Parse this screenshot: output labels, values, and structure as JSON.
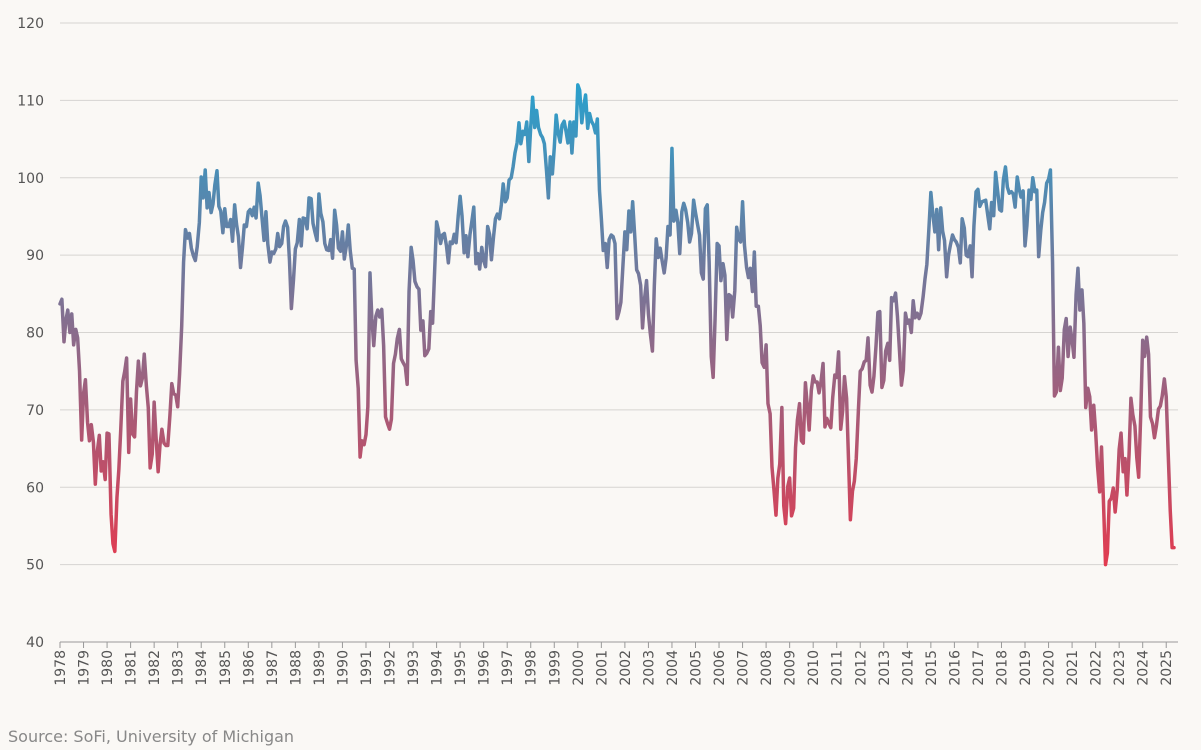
{
  "chart_data": {
    "type": "line",
    "source": "Source: SoFi, University of Michigan",
    "gradient_colors": [
      "#e23b50",
      "#2aa0cc"
    ],
    "grid": true,
    "xlim": [
      1978,
      2025.5
    ],
    "ylim": [
      40,
      120
    ],
    "yticks": [
      40,
      50,
      60,
      70,
      80,
      90,
      100,
      110,
      120
    ],
    "xticks": [
      1978,
      1979,
      1980,
      1981,
      1982,
      1983,
      1984,
      1985,
      1986,
      1987,
      1988,
      1989,
      1990,
      1991,
      1992,
      1993,
      1994,
      1995,
      1996,
      1997,
      1998,
      1999,
      2000,
      2001,
      2002,
      2003,
      2004,
      2005,
      2006,
      2007,
      2008,
      2009,
      2010,
      2011,
      2012,
      2013,
      2014,
      2015,
      2016,
      2017,
      2018,
      2019,
      2020,
      2021,
      2022,
      2023,
      2024,
      2025
    ],
    "x": [
      1978,
      1978.08,
      1978.17,
      1978.25,
      1978.33,
      1978.42,
      1978.5,
      1978.58,
      1978.67,
      1978.75,
      1978.83,
      1978.92,
      1979,
      1979.08,
      1979.17,
      1979.25,
      1979.33,
      1979.42,
      1979.5,
      1979.58,
      1979.67,
      1979.75,
      1979.83,
      1979.92,
      1980,
      1980.08,
      1980.17,
      1980.25,
      1980.33,
      1980.42,
      1980.5,
      1980.58,
      1980.67,
      1980.75,
      1980.83,
      1980.92,
      1981,
      1981.08,
      1981.17,
      1981.25,
      1981.33,
      1981.42,
      1981.5,
      1981.58,
      1981.67,
      1981.75,
      1981.83,
      1981.92,
      1982,
      1982.08,
      1982.17,
      1982.25,
      1982.33,
      1982.42,
      1982.5,
      1982.58,
      1982.67,
      1982.75,
      1982.83,
      1982.92,
      1983,
      1983.08,
      1983.17,
      1983.25,
      1983.33,
      1983.42,
      1983.5,
      1983.58,
      1983.67,
      1983.75,
      1983.83,
      1983.92,
      1984,
      1984.08,
      1984.17,
      1984.25,
      1984.33,
      1984.42,
      1984.5,
      1984.58,
      1984.67,
      1984.75,
      1984.83,
      1984.92,
      1985,
      1985.08,
      1985.17,
      1985.25,
      1985.33,
      1985.42,
      1985.5,
      1985.58,
      1985.67,
      1985.75,
      1985.83,
      1985.92,
      1986,
      1986.08,
      1986.17,
      1986.25,
      1986.33,
      1986.42,
      1986.5,
      1986.58,
      1986.67,
      1986.75,
      1986.83,
      1986.92,
      1987,
      1987.08,
      1987.17,
      1987.25,
      1987.33,
      1987.42,
      1987.5,
      1987.58,
      1987.67,
      1987.75,
      1987.83,
      1987.92,
      1988,
      1988.08,
      1988.17,
      1988.25,
      1988.33,
      1988.42,
      1988.5,
      1988.58,
      1988.67,
      1988.75,
      1988.83,
      1988.92,
      1989,
      1989.08,
      1989.17,
      1989.25,
      1989.33,
      1989.42,
      1989.5,
      1989.58,
      1989.67,
      1989.75,
      1989.83,
      1989.92,
      1990,
      1990.08,
      1990.17,
      1990.25,
      1990.33,
      1990.42,
      1990.5,
      1990.58,
      1990.67,
      1990.75,
      1990.83,
      1990.92,
      1991,
      1991.08,
      1991.17,
      1991.25,
      1991.33,
      1991.42,
      1991.5,
      1991.58,
      1991.67,
      1991.75,
      1991.83,
      1991.92,
      1992,
      1992.08,
      1992.17,
      1992.25,
      1992.33,
      1992.42,
      1992.5,
      1992.58,
      1992.67,
      1992.75,
      1992.83,
      1992.92,
      1993,
      1993.08,
      1993.17,
      1993.25,
      1993.33,
      1993.42,
      1993.5,
      1993.58,
      1993.67,
      1993.75,
      1993.83,
      1993.92,
      1994,
      1994.08,
      1994.17,
      1994.25,
      1994.33,
      1994.42,
      1994.5,
      1994.58,
      1994.67,
      1994.75,
      1994.83,
      1994.92,
      1995,
      1995.08,
      1995.17,
      1995.25,
      1995.33,
      1995.42,
      1995.5,
      1995.58,
      1995.67,
      1995.75,
      1995.83,
      1995.92,
      1996,
      1996.08,
      1996.17,
      1996.25,
      1996.33,
      1996.42,
      1996.5,
      1996.58,
      1996.67,
      1996.75,
      1996.83,
      1996.92,
      1997,
      1997.08,
      1997.17,
      1997.25,
      1997.33,
      1997.42,
      1997.5,
      1997.58,
      1997.67,
      1997.75,
      1997.83,
      1997.92,
      1998,
      1998.08,
      1998.17,
      1998.25,
      1998.33,
      1998.42,
      1998.5,
      1998.58,
      1998.67,
      1998.75,
      1998.83,
      1998.92,
      1999,
      1999.08,
      1999.17,
      1999.25,
      1999.33,
      1999.42,
      1999.5,
      1999.58,
      1999.67,
      1999.75,
      1999.83,
      1999.92,
      2000,
      2000.08,
      2000.17,
      2000.25,
      2000.33,
      2000.42,
      2000.5,
      2000.58,
      2000.67,
      2000.75,
      2000.83,
      2000.92,
      2001,
      2001.08,
      2001.17,
      2001.25,
      2001.33,
      2001.42,
      2001.5,
      2001.58,
      2001.67,
      2001.75,
      2001.83,
      2001.92,
      2002,
      2002.08,
      2002.17,
      2002.25,
      2002.33,
      2002.42,
      2002.5,
      2002.58,
      2002.67,
      2002.75,
      2002.83,
      2002.92,
      2003,
      2003.08,
      2003.17,
      2003.25,
      2003.33,
      2003.42,
      2003.5,
      2003.58,
      2003.67,
      2003.75,
      2003.83,
      2003.92,
      2004,
      2004.08,
      2004.17,
      2004.25,
      2004.33,
      2004.42,
      2004.5,
      2004.58,
      2004.67,
      2004.75,
      2004.83,
      2004.92,
      2005,
      2005.08,
      2005.17,
      2005.25,
      2005.33,
      2005.42,
      2005.5,
      2005.58,
      2005.67,
      2005.75,
      2005.83,
      2005.92,
      2006,
      2006.08,
      2006.17,
      2006.25,
      2006.33,
      2006.42,
      2006.5,
      2006.58,
      2006.67,
      2006.75,
      2006.83,
      2006.92,
      2007,
      2007.08,
      2007.17,
      2007.25,
      2007.33,
      2007.42,
      2007.5,
      2007.58,
      2007.67,
      2007.75,
      2007.83,
      2007.92,
      2008,
      2008.08,
      2008.17,
      2008.25,
      2008.33,
      2008.42,
      2008.5,
      2008.58,
      2008.67,
      2008.75,
      2008.83,
      2008.92,
      2009,
      2009.08,
      2009.17,
      2009.25,
      2009.33,
      2009.42,
      2009.5,
      2009.58,
      2009.67,
      2009.75,
      2009.83,
      2009.92,
      2010,
      2010.08,
      2010.17,
      2010.25,
      2010.33,
      2010.42,
      2010.5,
      2010.58,
      2010.67,
      2010.75,
      2010.83,
      2010.92,
      2011,
      2011.08,
      2011.17,
      2011.25,
      2011.33,
      2011.42,
      2011.5,
      2011.58,
      2011.67,
      2011.75,
      2011.83,
      2011.92,
      2012,
      2012.08,
      2012.17,
      2012.25,
      2012.33,
      2012.42,
      2012.5,
      2012.58,
      2012.67,
      2012.75,
      2012.83,
      2012.92,
      2013,
      2013.08,
      2013.17,
      2013.25,
      2013.33,
      2013.42,
      2013.5,
      2013.58,
      2013.67,
      2013.75,
      2013.83,
      2013.92,
      2014,
      2014.08,
      2014.17,
      2014.25,
      2014.33,
      2014.42,
      2014.5,
      2014.58,
      2014.67,
      2014.75,
      2014.83,
      2014.92,
      2015,
      2015.08,
      2015.17,
      2015.25,
      2015.33,
      2015.42,
      2015.5,
      2015.58,
      2015.67,
      2015.75,
      2015.83,
      2015.92,
      2016,
      2016.08,
      2016.17,
      2016.25,
      2016.33,
      2016.42,
      2016.5,
      2016.58,
      2016.67,
      2016.75,
      2016.83,
      2016.92,
      2017,
      2017.08,
      2017.17,
      2017.25,
      2017.33,
      2017.42,
      2017.5,
      2017.58,
      2017.67,
      2017.75,
      2017.83,
      2017.92,
      2018,
      2018.08,
      2018.17,
      2018.25,
      2018.33,
      2018.42,
      2018.5,
      2018.58,
      2018.67,
      2018.75,
      2018.83,
      2018.92,
      2019,
      2019.08,
      2019.17,
      2019.25,
      2019.33,
      2019.42,
      2019.5,
      2019.58,
      2019.67,
      2019.75,
      2019.83,
      2019.92,
      2020,
      2020.08,
      2020.17,
      2020.25,
      2020.33,
      2020.42,
      2020.5,
      2020.58,
      2020.67,
      2020.75,
      2020.83,
      2020.92,
      2021,
      2021.08,
      2021.17,
      2021.25,
      2021.33,
      2021.42,
      2021.5,
      2021.58,
      2021.67,
      2021.75,
      2021.83,
      2021.92,
      2022,
      2022.08,
      2022.17,
      2022.25,
      2022.33,
      2022.42,
      2022.5,
      2022.58,
      2022.67,
      2022.75,
      2022.83,
      2022.92,
      2023,
      2023.08,
      2023.17,
      2023.25,
      2023.33,
      2023.42,
      2023.5,
      2023.58,
      2023.67,
      2023.75,
      2023.83,
      2023.92,
      2024,
      2024.08,
      2024.17,
      2024.25,
      2024.33,
      2024.42,
      2024.5,
      2024.58,
      2024.67,
      2024.75,
      2024.83,
      2024.92,
      2025,
      2025.08,
      2025.17,
      2025.25,
      2025.33
    ],
    "values": [
      83.7,
      84.3,
      78.8,
      81.6,
      82.9,
      80.0,
      82.4,
      78.4,
      80.4,
      79.3,
      75.0,
      66.1,
      72.1,
      73.9,
      68.4,
      66.0,
      68.1,
      65.8,
      60.4,
      64.5,
      66.7,
      62.1,
      63.3,
      61.0,
      67.0,
      66.9,
      56.5,
      52.7,
      51.7,
      58.7,
      62.3,
      67.4,
      73.7,
      75.0,
      76.7,
      64.5,
      71.4,
      66.9,
      66.5,
      72.4,
      76.3,
      73.1,
      74.1,
      77.2,
      73.1,
      70.3,
      62.5,
      64.3,
      71.0,
      66.5,
      62.0,
      65.5,
      67.5,
      65.7,
      65.4,
      65.4,
      69.3,
      73.4,
      72.1,
      71.9,
      70.4,
      74.6,
      80.8,
      89.1,
      93.3,
      92.2,
      92.8,
      90.9,
      89.9,
      89.3,
      91.1,
      94.2,
      100.1,
      97.4,
      101.0,
      96.1,
      98.1,
      95.5,
      96.6,
      99.1,
      100.9,
      96.3,
      95.7,
      92.9,
      96.0,
      93.7,
      93.7,
      94.6,
      91.8,
      96.5,
      94.0,
      92.4,
      88.4,
      90.9,
      93.9,
      93.7,
      95.6,
      95.9,
      95.1,
      96.2,
      94.8,
      99.3,
      97.7,
      94.9,
      91.9,
      95.6,
      91.4,
      89.1,
      90.4,
      90.2,
      90.8,
      92.8,
      91.1,
      91.5,
      93.7,
      94.4,
      93.6,
      89.3,
      83.1,
      86.8,
      90.8,
      91.6,
      94.6,
      91.2,
      94.8,
      94.7,
      93.4,
      97.4,
      97.3,
      94.1,
      93.0,
      91.9,
      97.9,
      95.4,
      94.3,
      91.5,
      90.7,
      90.6,
      92.0,
      89.6,
      95.8,
      93.9,
      90.9,
      90.5,
      93.0,
      89.5,
      91.3,
      93.9,
      90.6,
      88.3,
      88.2,
      76.4,
      72.8,
      63.9,
      66.0,
      65.5,
      66.8,
      70.4,
      87.7,
      81.8,
      78.3,
      82.1,
      82.9,
      82.0,
      83.0,
      78.3,
      69.1,
      68.2,
      67.5,
      68.8,
      76.0,
      77.2,
      79.2,
      80.4,
      76.6,
      76.1,
      75.6,
      73.3,
      85.3,
      91.0,
      89.3,
      86.6,
      85.9,
      85.6,
      80.3,
      81.5,
      77.0,
      77.3,
      77.9,
      82.7,
      81.2,
      88.2,
      94.3,
      93.2,
      91.5,
      92.6,
      92.8,
      91.2,
      89.0,
      91.7,
      91.5,
      92.7,
      91.6,
      95.1,
      97.6,
      95.1,
      90.3,
      92.5,
      89.8,
      92.7,
      94.4,
      96.2,
      88.9,
      90.2,
      88.2,
      91.0,
      89.3,
      88.5,
      93.7,
      92.7,
      89.4,
      92.4,
      94.7,
      95.3,
      94.7,
      96.5,
      99.2,
      96.9,
      97.4,
      99.7,
      100.0,
      101.4,
      103.2,
      104.5,
      107.1,
      104.4,
      106.0,
      105.6,
      107.2,
      102.1,
      106.6,
      110.4,
      106.5,
      108.7,
      106.5,
      105.6,
      105.2,
      104.4,
      100.9,
      97.4,
      102.7,
      100.5,
      103.9,
      108.1,
      105.7,
      104.6,
      106.8,
      107.3,
      106.0,
      104.5,
      107.2,
      103.2,
      107.2,
      105.4,
      112.0,
      111.3,
      107.1,
      109.2,
      110.7,
      106.4,
      108.3,
      107.3,
      106.8,
      105.8,
      107.6,
      98.4,
      94.7,
      90.6,
      91.5,
      88.4,
      92.0,
      92.6,
      92.4,
      91.5,
      81.8,
      82.7,
      83.9,
      88.8,
      93.0,
      90.7,
      95.7,
      93.0,
      96.9,
      92.4,
      88.1,
      87.6,
      86.1,
      80.6,
      84.2,
      86.7,
      82.4,
      79.9,
      77.6,
      86.0,
      92.1,
      89.7,
      90.9,
      89.3,
      87.7,
      89.6,
      93.7,
      92.6,
      103.8,
      94.4,
      95.8,
      94.2,
      90.2,
      95.6,
      96.7,
      95.9,
      94.2,
      91.7,
      92.8,
      97.1,
      95.5,
      94.1,
      92.6,
      87.7,
      86.9,
      96.0,
      96.5,
      89.1,
      76.9,
      74.2,
      81.6,
      91.5,
      91.2,
      86.7,
      88.9,
      87.4,
      79.1,
      84.9,
      84.7,
      82.0,
      85.4,
      93.6,
      92.1,
      91.7,
      96.9,
      91.3,
      88.4,
      87.1,
      88.3,
      85.3,
      90.4,
      83.4,
      83.4,
      80.9,
      76.1,
      75.5,
      78.4,
      70.8,
      69.5,
      62.6,
      59.8,
      56.4,
      61.2,
      63.0,
      70.3,
      57.6,
      55.3,
      60.1,
      61.2,
      56.3,
      57.3,
      65.1,
      68.7,
      70.8,
      66.0,
      65.7,
      73.5,
      70.6,
      67.4,
      72.5,
      74.4,
      73.6,
      73.6,
      72.2,
      73.6,
      76.0,
      67.8,
      68.9,
      68.2,
      67.7,
      71.6,
      74.5,
      74.2,
      77.5,
      67.5,
      69.8,
      74.3,
      71.5,
      63.7,
      55.8,
      59.5,
      60.8,
      63.7,
      69.9,
      75.0,
      75.3,
      76.2,
      76.4,
      79.3,
      73.2,
      72.3,
      74.3,
      78.3,
      82.6,
      82.7,
      72.9,
      73.8,
      77.6,
      78.6,
      76.4,
      84.5,
      84.1,
      85.1,
      82.1,
      77.5,
      73.2,
      75.1,
      82.5,
      81.2,
      81.6,
      80.0,
      84.1,
      81.9,
      82.5,
      81.8,
      82.5,
      84.6,
      86.9,
      88.8,
      93.6,
      98.1,
      95.4,
      93.0,
      95.9,
      90.7,
      96.1,
      93.1,
      91.9,
      87.2,
      90.0,
      91.3,
      92.6,
      92.0,
      91.7,
      91.0,
      89.0,
      94.7,
      93.5,
      90.0,
      89.8,
      91.2,
      87.2,
      93.8,
      98.2,
      98.5,
      96.3,
      96.9,
      97.0,
      97.1,
      95.1,
      93.4,
      96.8,
      95.1,
      100.7,
      98.5,
      95.9,
      95.7,
      99.7,
      101.4,
      98.8,
      98.0,
      98.2,
      97.9,
      96.2,
      100.1,
      98.6,
      97.5,
      98.3,
      91.2,
      93.8,
      98.4,
      97.2,
      100.0,
      98.2,
      98.4,
      89.8,
      93.2,
      95.5,
      96.8,
      99.3,
      99.8,
      101.0,
      89.1,
      71.8,
      72.3,
      78.1,
      72.5,
      74.1,
      80.4,
      81.8,
      76.9,
      80.7,
      79.0,
      76.8,
      84.9,
      88.3,
      82.9,
      85.5,
      81.2,
      70.3,
      72.8,
      71.7,
      67.4,
      70.6,
      67.2,
      62.8,
      59.4,
      65.2,
      58.4,
      50.0,
      51.5,
      58.2,
      58.6,
      59.9,
      56.8,
      59.7,
      64.9,
      67.0,
      62.0,
      63.7,
      59.0,
      64.2,
      71.5,
      69.4,
      67.9,
      63.8,
      61.3,
      69.7,
      79.0,
      76.9,
      79.4,
      77.2,
      69.1,
      68.2,
      66.4,
      67.9,
      70.1,
      70.5,
      71.8,
      74.0,
      71.7,
      64.7,
      57.0,
      52.2,
      52.2
    ]
  }
}
